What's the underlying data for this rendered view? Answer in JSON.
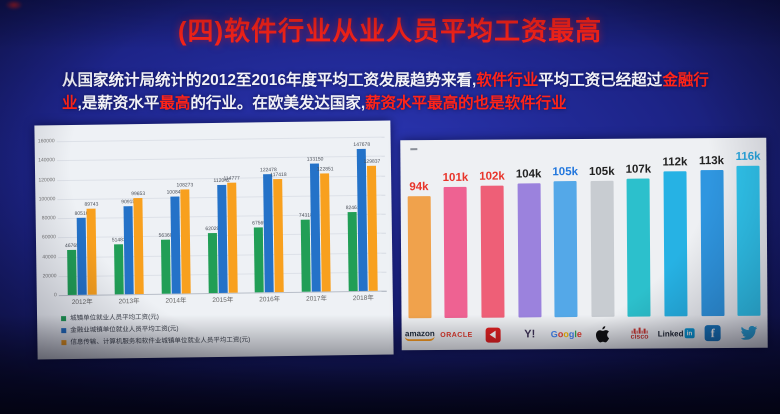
{
  "slide": {
    "title": "(四)软件行业从业人员平均工资最高",
    "paragraph": {
      "lines": [
        [
          {
            "text": "从国家统计局统计的2012至2016年度平均工资发展趋势来看,",
            "red": false
          },
          {
            "text": "软件行业",
            "red": true
          },
          {
            "text": "平均工资已经超过",
            "red": false
          },
          {
            "text": "金融行",
            "red": true
          }
        ],
        [
          {
            "text": "业",
            "red": true
          },
          {
            "text": ",是薪资水平",
            "red": false
          },
          {
            "text": "最高",
            "red": true
          },
          {
            "text": "的行业。在欧美发达国家,",
            "red": false
          },
          {
            "text": "薪资水平最高的也是软件行业",
            "red": true
          }
        ]
      ]
    }
  },
  "chart_data": [
    {
      "type": "bar",
      "categories": [
        "2012年",
        "2013年",
        "2014年",
        "2015年",
        "2016年",
        "2017年",
        "2018年"
      ],
      "series": [
        {
          "name": "城镇单位就业人员平均工资(元)",
          "color": "#219e56",
          "values": [
            46769,
            51483,
            56360,
            62029,
            67569,
            74318,
            82461
          ]
        },
        {
          "name": "金融业城镇单位就业人员平均工资(元)",
          "color": "#2472c8",
          "values": [
            80510,
            90915,
            100845,
            112042,
            122478,
            133150,
            147678
          ]
        },
        {
          "name": "信息传输、计算机服务和软件业城镇单位就业人员平均工资(元)",
          "color": "#f8a01e",
          "values": [
            89743,
            99653,
            108273,
            114777,
            117418,
            122851,
            129837
          ]
        }
      ],
      "xlabel": "",
      "ylabel": "",
      "ylim": [
        0,
        160000
      ],
      "yticks": [
        0,
        20000,
        40000,
        60000,
        80000,
        100000,
        120000,
        140000,
        160000
      ],
      "grid": true,
      "legend_position": "bottom-left"
    },
    {
      "type": "bar",
      "categories": [
        "Amazon",
        "Oracle",
        "Yelp",
        "Yahoo",
        "Google",
        "Apple",
        "Cisco",
        "LinkedIn",
        "Facebook",
        "Twitter"
      ],
      "values": [
        94,
        101,
        102,
        104,
        105,
        105,
        107,
        112,
        113,
        116
      ],
      "value_labels": [
        "94k",
        "101k",
        "102k",
        "104k",
        "105k",
        "105k",
        "107k",
        "112k",
        "113k",
        "116k"
      ],
      "bar_colors": [
        "#f0a24c",
        "#ee6292",
        "#ee5f77",
        "#9b82dd",
        "#54a8e8",
        "#c8ccd1",
        "#2cc0cc",
        "#26b2e4",
        "#2f96e0",
        "#30c6ee"
      ],
      "label_colors": [
        "#e8342a",
        "#e8342a",
        "#e8342a",
        "#222222",
        "#2277dd",
        "#222222",
        "#222222",
        "#222222",
        "#222222",
        "#28a8e0"
      ],
      "xlabel": "",
      "ylabel": "",
      "ylim": [
        0,
        116
      ],
      "grid": false,
      "legend_position": "none"
    }
  ]
}
